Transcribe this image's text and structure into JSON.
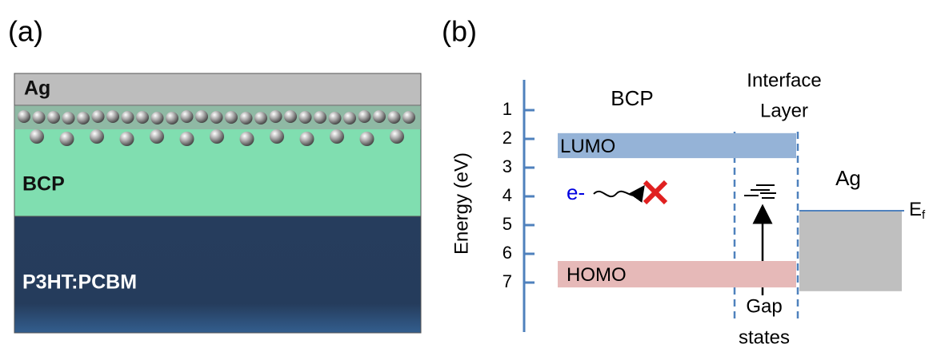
{
  "panel_a": {
    "label": "(a)",
    "layers": [
      "Ag",
      "BCP",
      "P3HT:PCBM"
    ]
  },
  "panel_b": {
    "label": "(b)",
    "axis_label": "Energy (eV)",
    "ylim": [
      0,
      8.7
    ],
    "yticks": [
      1,
      2,
      3,
      4,
      5,
      6,
      7
    ],
    "bcp_label": "BCP",
    "interface_label": [
      "Interface",
      "Layer"
    ],
    "lumo": {
      "label": "LUMO",
      "range": [
        1.8,
        2.67
      ]
    },
    "homo": {
      "label": "HOMO",
      "range": [
        6.25,
        7.17
      ]
    },
    "electron": "e-",
    "metal": {
      "label": "Ag",
      "bottom": 7.3
    },
    "fermi_level": {
      "label": "E",
      "subscript": "f",
      "value": 4.5
    },
    "gap_states_label": [
      "Gap",
      "states"
    ]
  }
}
